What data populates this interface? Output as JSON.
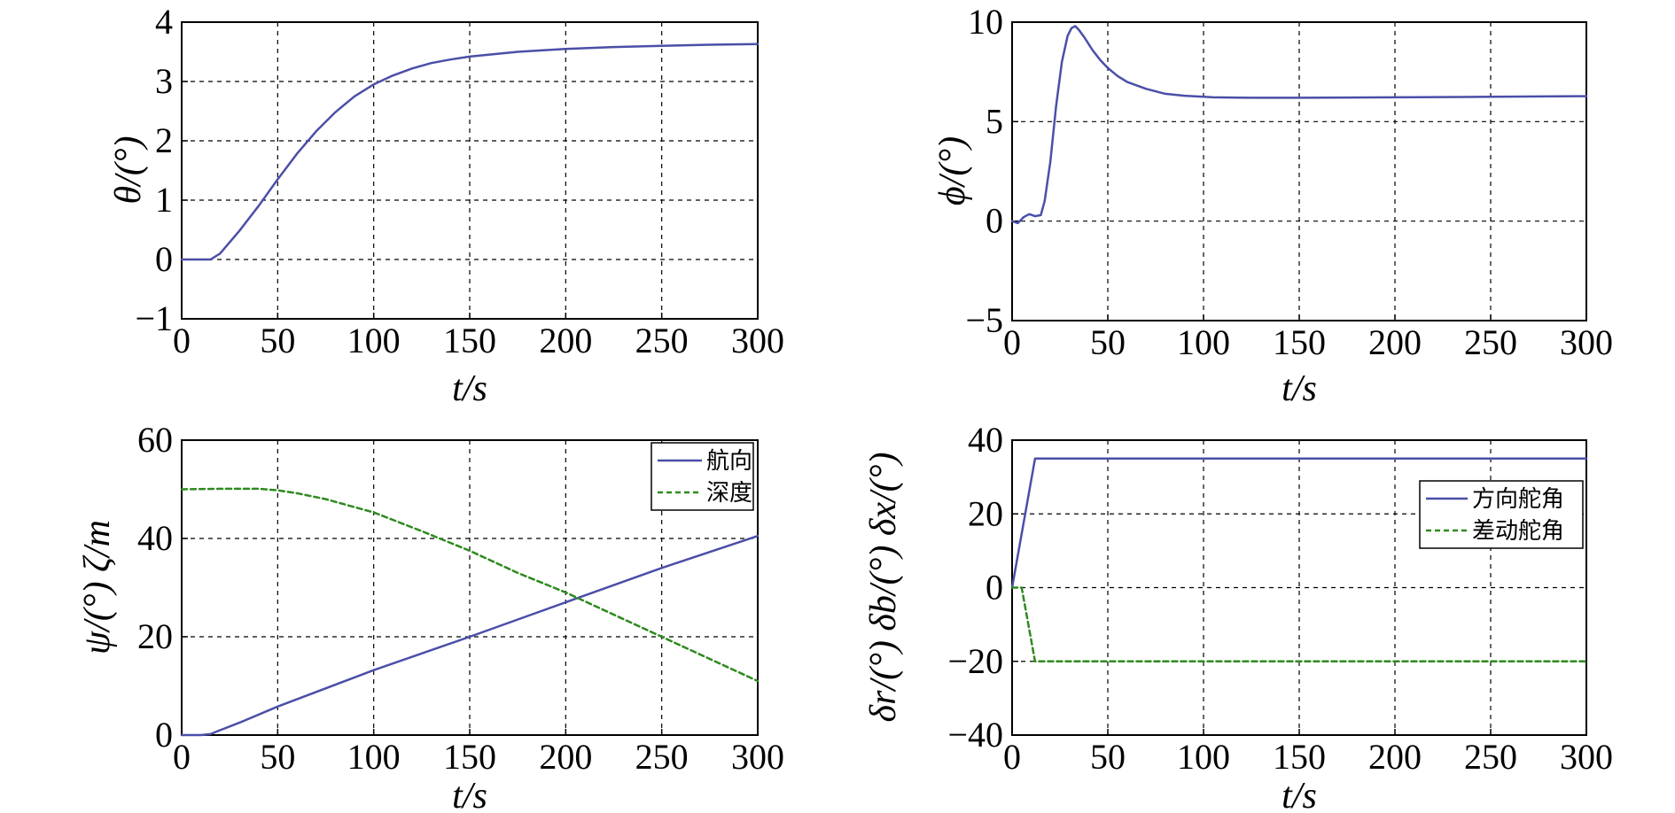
{
  "chart_data": [
    {
      "type": "line",
      "xlabel": "t/s",
      "ylabel": "θ/(°)",
      "xlim": [
        0,
        300
      ],
      "ylim": [
        -1,
        4
      ],
      "xticks": [
        "0",
        "50",
        "100",
        "150",
        "200",
        "250",
        "300"
      ],
      "yticks": [
        "−1",
        "0",
        "1",
        "2",
        "3",
        "4"
      ],
      "grid": true,
      "legend": null,
      "series": [
        {
          "name": "θ",
          "color": "#4a4fa8",
          "style": "solid",
          "x": [
            0,
            15,
            20,
            30,
            40,
            50,
            60,
            70,
            80,
            90,
            100,
            110,
            120,
            130,
            140,
            150,
            175,
            200,
            225,
            250,
            275,
            300
          ],
          "y": [
            0,
            0,
            0.1,
            0.48,
            0.9,
            1.35,
            1.78,
            2.16,
            2.48,
            2.75,
            2.95,
            3.1,
            3.22,
            3.31,
            3.37,
            3.42,
            3.5,
            3.55,
            3.58,
            3.6,
            3.62,
            3.63
          ]
        }
      ]
    },
    {
      "type": "line",
      "xlabel": "t/s",
      "ylabel": "ϕ/(°)",
      "xlim": [
        0,
        300
      ],
      "ylim": [
        -5,
        10
      ],
      "xticks": [
        "0",
        "50",
        "100",
        "150",
        "200",
        "250",
        "300"
      ],
      "yticks": [
        "−5",
        "0",
        "5",
        "10"
      ],
      "grid": true,
      "legend": null,
      "series": [
        {
          "name": "ϕ",
          "color": "#4a4fa8",
          "style": "solid",
          "x": [
            0,
            3,
            6,
            9,
            12,
            15,
            17,
            20,
            23,
            26,
            29,
            31,
            33,
            35,
            38,
            42,
            46,
            50,
            55,
            60,
            70,
            80,
            90,
            100,
            105,
            125,
            150,
            200,
            250,
            300
          ],
          "y": [
            0,
            -0.1,
            0.2,
            0.35,
            0.25,
            0.3,
            1.0,
            3.0,
            5.8,
            8.0,
            9.3,
            9.7,
            9.8,
            9.6,
            9.2,
            8.6,
            8.1,
            7.7,
            7.3,
            7.0,
            6.65,
            6.4,
            6.3,
            6.25,
            6.22,
            6.2,
            6.2,
            6.22,
            6.25,
            6.28
          ]
        }
      ]
    },
    {
      "type": "line",
      "xlabel": "t/s",
      "ylabel": "ψ/(°) ζ/m",
      "xlim": [
        0,
        300
      ],
      "ylim": [
        0,
        60
      ],
      "xticks": [
        "0",
        "50",
        "100",
        "150",
        "200",
        "250",
        "300"
      ],
      "yticks": [
        "0",
        "20",
        "40",
        "60"
      ],
      "grid": true,
      "legend": "top-right",
      "series": [
        {
          "name": "航向",
          "color": "#4a4fa8",
          "style": "solid",
          "x": [
            0,
            10,
            15,
            20,
            30,
            50,
            100,
            150,
            200,
            250,
            300
          ],
          "y": [
            0,
            0,
            0.2,
            1.0,
            2.5,
            5.8,
            13.2,
            20.0,
            27.0,
            34.0,
            40.5
          ]
        },
        {
          "name": "深度",
          "color": "#2e8a1e",
          "style": "dashed",
          "x": [
            0,
            20,
            40,
            50,
            60,
            75,
            100,
            125,
            150,
            175,
            200,
            225,
            250,
            275,
            300
          ],
          "y": [
            50,
            50.1,
            50.1,
            49.8,
            49.2,
            48.0,
            45.3,
            41.5,
            37.5,
            33.0,
            29.0,
            24.5,
            20.0,
            15.5,
            11.0
          ]
        }
      ]
    },
    {
      "type": "line",
      "xlabel": "t/s",
      "ylabel": "δr/(°) δb/(°) δx/(°)",
      "xlim": [
        0,
        300
      ],
      "ylim": [
        -40,
        40
      ],
      "xticks": [
        "0",
        "50",
        "100",
        "150",
        "200",
        "250",
        "300"
      ],
      "yticks": [
        "−40",
        "−20",
        "0",
        "20",
        "40"
      ],
      "grid": true,
      "legend": "right",
      "series": [
        {
          "name": "方向舵角",
          "color": "#4a4fa8",
          "style": "solid",
          "x": [
            0,
            12,
            300
          ],
          "y": [
            0,
            35,
            35
          ]
        },
        {
          "name": "差动舵角",
          "color": "#2e8a1e",
          "style": "dashed",
          "x": [
            0,
            5,
            12,
            300
          ],
          "y": [
            0,
            0,
            -20,
            -20
          ]
        }
      ]
    }
  ]
}
